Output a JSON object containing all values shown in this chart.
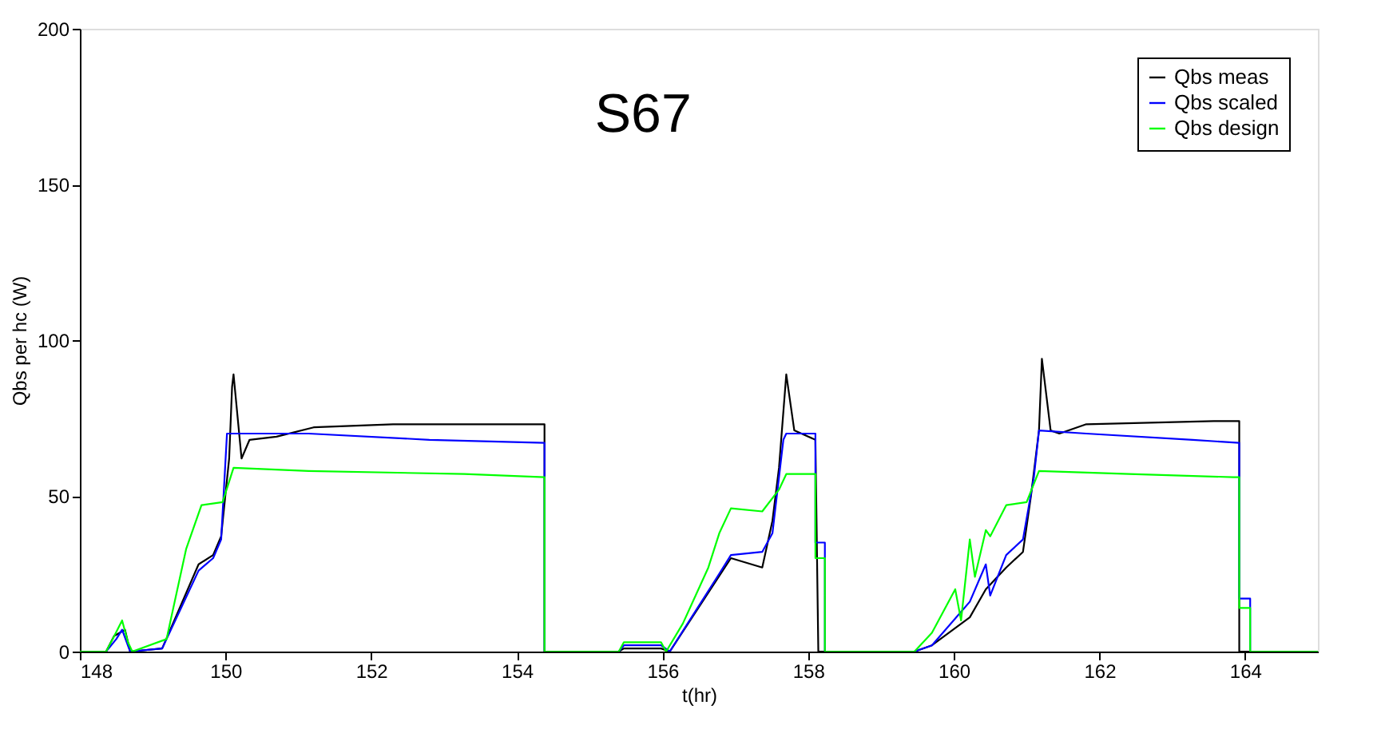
{
  "chart_data": {
    "type": "line",
    "title": "S67",
    "xlabel": "t(hr)",
    "ylabel": "Qbs per hc (W)",
    "xlim": [
      148,
      165
    ],
    "xticks": [
      148,
      150,
      152,
      154,
      156,
      158,
      160,
      162,
      164
    ],
    "ylim": [
      0,
      200
    ],
    "yticks": [
      0,
      50,
      100,
      150,
      200
    ],
    "grid": false,
    "legend": "top right",
    "line_style": "solid",
    "marker": "none",
    "series": [
      {
        "name": "Qbs meas",
        "color": "#000000",
        "x": [
          148,
          148.36,
          148.47,
          148.62,
          148.69,
          149.13,
          149.63,
          149.83,
          149.94,
          150.05,
          150.09,
          150.11,
          150.22,
          150.33,
          150.7,
          151.21,
          152.3,
          154.38,
          154.38,
          155.4,
          155.47,
          155.98,
          156.1,
          156.94,
          157.37,
          157.51,
          157.6,
          157.7,
          157.81,
          158.1,
          158.14,
          159.46,
          159.7,
          160.22,
          160.44,
          160.72,
          160.95,
          161.06,
          161.17,
          161.21,
          161.33,
          161.45,
          161.82,
          163.57,
          163.92,
          163.92,
          165
        ],
        "values": [
          0,
          0,
          5,
          7,
          0,
          1,
          28,
          31,
          37,
          62,
          85,
          89,
          62,
          68,
          69,
          72,
          73,
          73,
          0,
          0,
          1,
          1,
          0,
          30,
          27,
          42,
          59,
          89,
          71,
          68,
          0,
          0,
          2,
          11,
          20,
          27,
          32,
          50,
          71,
          94,
          71,
          70,
          73,
          74,
          74,
          0,
          0
        ]
      },
      {
        "name": "Qbs scaled",
        "color": "#0000ff",
        "x": [
          148,
          148.36,
          148.5,
          148.58,
          148.69,
          149.13,
          149.63,
          149.83,
          149.94,
          150.02,
          151.14,
          152.8,
          154.38,
          154.38,
          155.4,
          155.47,
          155.98,
          156.1,
          156.78,
          156.94,
          157.37,
          157.51,
          157.66,
          157.7,
          158.1,
          158.1,
          158.23,
          158.23,
          159.46,
          159.7,
          160.22,
          160.44,
          160.5,
          160.72,
          160.95,
          161.1,
          161.17,
          161.82,
          163.28,
          163.92,
          163.92,
          164.07,
          164.07,
          165
        ],
        "values": [
          0,
          0,
          4,
          7,
          0,
          1,
          26,
          30,
          36,
          70,
          70,
          68,
          67,
          0,
          0,
          2,
          2,
          0,
          25,
          31,
          32,
          38,
          68,
          70,
          70,
          35,
          35,
          0,
          0,
          2,
          16,
          28,
          18,
          31,
          36,
          56,
          71,
          70,
          68,
          67,
          17,
          17,
          0,
          0
        ]
      },
      {
        "name": "Qbs design",
        "color": "#00ff00",
        "x": [
          148,
          148.36,
          148.45,
          148.58,
          148.66,
          148.72,
          149.19,
          149.46,
          149.67,
          149.96,
          150.11,
          151.14,
          153.28,
          154.38,
          154.38,
          155.4,
          155.47,
          155.98,
          156.05,
          156.28,
          156.63,
          156.78,
          156.94,
          157.37,
          157.6,
          157.7,
          158.1,
          158.1,
          158.23,
          158.23,
          159.46,
          159.7,
          160.02,
          160.1,
          160.22,
          160.29,
          160.44,
          160.5,
          160.72,
          161.0,
          161.17,
          162.41,
          163.84,
          163.92,
          163.92,
          164.07,
          164.07,
          165
        ],
        "values": [
          0,
          0,
          4,
          10,
          3,
          0,
          4,
          33,
          47,
          48,
          59,
          58,
          57,
          56,
          0,
          0,
          3,
          3,
          0,
          9,
          27,
          38,
          46,
          45,
          52,
          57,
          57,
          30,
          30,
          0,
          0,
          6,
          20,
          10,
          36,
          24,
          39,
          37,
          47,
          48,
          58,
          57,
          56,
          56,
          14,
          14,
          0,
          0
        ]
      }
    ]
  }
}
